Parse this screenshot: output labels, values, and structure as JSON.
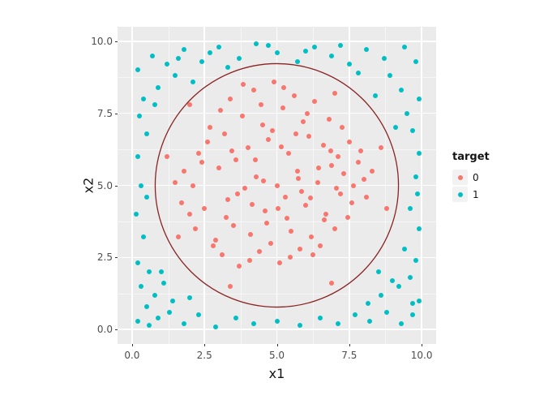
{
  "chart_data": {
    "type": "scatter",
    "title": "",
    "xlabel": "x1",
    "ylabel": "x2",
    "xlim": [
      -0.5,
      10.5
    ],
    "ylim": [
      -0.5,
      10.5
    ],
    "major_ticks": [
      0,
      2.5,
      5,
      7.5,
      10
    ],
    "minor_ticks": [
      1.25,
      3.75,
      6.25,
      8.75
    ],
    "x_tick_labels": [
      "0.0",
      "2.5",
      "5.0",
      "7.5",
      "10.0"
    ],
    "y_tick_labels": [
      "0.0",
      "2.5",
      "5.0",
      "7.5",
      "10.0"
    ],
    "panel_bg": "#EBEBEB",
    "grid_color": "#FFFFFF",
    "grid": "on",
    "legend": {
      "title": "target",
      "position": "right",
      "entries": [
        {
          "label": "0",
          "color": "#F8766D"
        },
        {
          "label": "1",
          "color": "#00BFC4"
        }
      ]
    },
    "annotations": [
      {
        "type": "circle",
        "cx": 5,
        "cy": 5,
        "r": 4.2,
        "stroke": "#8B2323",
        "stroke_width": 1.3,
        "fill": "none",
        "name": "decision-boundary-circle"
      }
    ],
    "series": [
      {
        "name": "0",
        "color": "#F8766D",
        "points": [
          [
            2.1,
            5.0
          ],
          [
            2.3,
            6.1
          ],
          [
            2.5,
            4.2
          ],
          [
            2.7,
            7.0
          ],
          [
            2.9,
            3.1
          ],
          [
            3.0,
            5.6
          ],
          [
            3.1,
            2.6
          ],
          [
            3.2,
            6.8
          ],
          [
            3.3,
            4.5
          ],
          [
            3.4,
            8.0
          ],
          [
            3.5,
            3.6
          ],
          [
            3.6,
            5.9
          ],
          [
            3.7,
            2.2
          ],
          [
            3.8,
            7.4
          ],
          [
            3.9,
            4.9
          ],
          [
            4.0,
            6.3
          ],
          [
            4.1,
            3.3
          ],
          [
            4.2,
            8.3
          ],
          [
            4.3,
            5.3
          ],
          [
            4.4,
            2.7
          ],
          [
            4.5,
            7.1
          ],
          [
            4.6,
            4.1
          ],
          [
            4.7,
            6.6
          ],
          [
            4.8,
            3.0
          ],
          [
            4.9,
            8.6
          ],
          [
            5.0,
            5.0
          ],
          [
            5.1,
            2.3
          ],
          [
            5.2,
            7.7
          ],
          [
            5.3,
            4.6
          ],
          [
            5.4,
            6.1
          ],
          [
            5.5,
            3.4
          ],
          [
            5.6,
            8.1
          ],
          [
            5.7,
            5.5
          ],
          [
            5.8,
            2.8
          ],
          [
            5.9,
            7.2
          ],
          [
            6.0,
            4.3
          ],
          [
            6.1,
            6.7
          ],
          [
            6.2,
            3.2
          ],
          [
            6.3,
            7.9
          ],
          [
            6.4,
            5.1
          ],
          [
            6.5,
            2.9
          ],
          [
            6.6,
            6.4
          ],
          [
            6.7,
            4.0
          ],
          [
            6.8,
            7.3
          ],
          [
            6.9,
            5.7
          ],
          [
            7.0,
            3.5
          ],
          [
            7.1,
            6.0
          ],
          [
            7.2,
            4.7
          ],
          [
            7.3,
            5.4
          ],
          [
            7.5,
            6.5
          ],
          [
            7.6,
            4.4
          ],
          [
            7.8,
            5.8
          ],
          [
            8.0,
            5.2
          ],
          [
            8.1,
            4.6
          ],
          [
            2.0,
            4.0
          ],
          [
            1.8,
            5.5
          ],
          [
            1.5,
            5.1
          ],
          [
            1.7,
            4.4
          ],
          [
            2.2,
            3.5
          ],
          [
            2.4,
            5.8
          ],
          [
            2.6,
            6.5
          ],
          [
            2.8,
            2.9
          ],
          [
            3.05,
            7.6
          ],
          [
            3.25,
            3.9
          ],
          [
            3.45,
            6.2
          ],
          [
            3.65,
            4.7
          ],
          [
            3.85,
            8.5
          ],
          [
            4.05,
            2.4
          ],
          [
            4.25,
            5.9
          ],
          [
            4.45,
            7.8
          ],
          [
            4.65,
            3.7
          ],
          [
            4.85,
            6.9
          ],
          [
            5.05,
            4.2
          ],
          [
            5.25,
            8.4
          ],
          [
            5.45,
            2.5
          ],
          [
            5.65,
            6.8
          ],
          [
            5.85,
            4.8
          ],
          [
            6.05,
            7.5
          ],
          [
            6.25,
            2.6
          ],
          [
            6.45,
            5.6
          ],
          [
            6.65,
            3.8
          ],
          [
            6.85,
            6.2
          ],
          [
            7.05,
            4.9
          ],
          [
            7.25,
            7.0
          ],
          [
            7.45,
            3.9
          ],
          [
            7.65,
            5.0
          ],
          [
            7.9,
            6.2
          ],
          [
            8.3,
            5.5
          ],
          [
            4.15,
            4.35
          ],
          [
            4.55,
            5.15
          ],
          [
            5.15,
            6.35
          ],
          [
            5.35,
            3.85
          ],
          [
            5.75,
            5.25
          ],
          [
            6.15,
            4.55
          ],
          [
            1.2,
            6.0
          ],
          [
            2.0,
            7.8
          ],
          [
            7.0,
            8.2
          ],
          [
            8.6,
            6.3
          ],
          [
            8.8,
            4.2
          ],
          [
            6.9,
            1.6
          ],
          [
            3.4,
            1.5
          ],
          [
            1.6,
            3.2
          ]
        ]
      },
      {
        "name": "1",
        "color": "#00BFC4",
        "points": [
          [
            0.2,
            0.3
          ],
          [
            0.5,
            0.8
          ],
          [
            0.9,
            0.4
          ],
          [
            1.3,
            0.6
          ],
          [
            1.8,
            0.2
          ],
          [
            2.3,
            0.5
          ],
          [
            2.9,
            0.1
          ],
          [
            3.6,
            0.4
          ],
          [
            4.2,
            0.2
          ],
          [
            5.0,
            0.3
          ],
          [
            5.8,
            0.15
          ],
          [
            6.5,
            0.4
          ],
          [
            7.1,
            0.2
          ],
          [
            7.7,
            0.5
          ],
          [
            8.2,
            0.3
          ],
          [
            8.8,
            0.6
          ],
          [
            9.3,
            0.2
          ],
          [
            9.7,
            0.5
          ],
          [
            9.9,
            1.0
          ],
          [
            0.3,
            1.5
          ],
          [
            0.8,
            1.2
          ],
          [
            1.4,
            1.0
          ],
          [
            2.0,
            1.1
          ],
          [
            8.6,
            1.2
          ],
          [
            9.2,
            1.5
          ],
          [
            9.6,
            1.8
          ],
          [
            0.2,
            2.3
          ],
          [
            0.6,
            2.0
          ],
          [
            9.8,
            2.4
          ],
          [
            9.4,
            2.8
          ],
          [
            0.4,
            3.2
          ],
          [
            0.15,
            4.0
          ],
          [
            9.9,
            3.5
          ],
          [
            9.6,
            4.2
          ],
          [
            0.3,
            5.0
          ],
          [
            0.2,
            6.0
          ],
          [
            9.8,
            5.3
          ],
          [
            9.9,
            6.1
          ],
          [
            0.5,
            6.8
          ],
          [
            0.25,
            7.4
          ],
          [
            9.7,
            6.9
          ],
          [
            9.5,
            7.5
          ],
          [
            0.4,
            8.0
          ],
          [
            0.9,
            8.4
          ],
          [
            9.9,
            8.0
          ],
          [
            9.3,
            8.3
          ],
          [
            0.2,
            9.0
          ],
          [
            0.7,
            9.5
          ],
          [
            1.2,
            9.2
          ],
          [
            1.8,
            9.7
          ],
          [
            2.4,
            9.3
          ],
          [
            3.0,
            9.8
          ],
          [
            3.7,
            9.4
          ],
          [
            4.3,
            9.9
          ],
          [
            5.0,
            9.6
          ],
          [
            5.7,
            9.3
          ],
          [
            6.3,
            9.8
          ],
          [
            6.9,
            9.5
          ],
          [
            7.5,
            9.2
          ],
          [
            8.1,
            9.7
          ],
          [
            8.7,
            9.4
          ],
          [
            9.4,
            9.8
          ],
          [
            9.8,
            9.3
          ],
          [
            1.5,
            8.8
          ],
          [
            2.1,
            8.6
          ],
          [
            8.9,
            8.8
          ],
          [
            0.6,
            0.15
          ],
          [
            3.3,
            9.1
          ],
          [
            7.8,
            8.9
          ],
          [
            8.4,
            8.1
          ],
          [
            9.1,
            7.0
          ],
          [
            9.7,
            0.9
          ],
          [
            1.0,
            2.0
          ],
          [
            0.8,
            7.8
          ],
          [
            2.7,
            9.6
          ],
          [
            4.7,
            9.85
          ],
          [
            6.0,
            9.65
          ],
          [
            8.5,
            2.0
          ],
          [
            1.1,
            1.6
          ],
          [
            9.0,
            1.7
          ],
          [
            0.5,
            4.6
          ],
          [
            9.85,
            4.7
          ],
          [
            1.6,
            9.4
          ],
          [
            8.15,
            0.9
          ],
          [
            7.2,
            9.85
          ]
        ]
      }
    ]
  }
}
